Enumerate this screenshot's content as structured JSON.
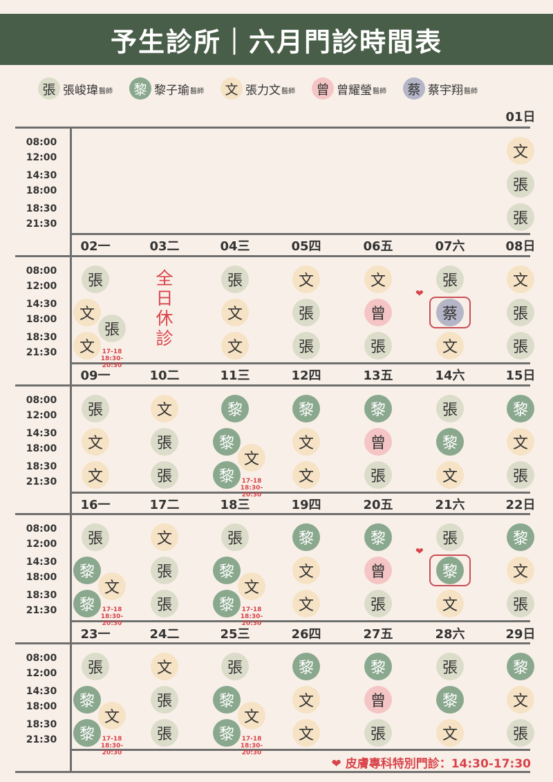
{
  "title": "予生診所｜六月門診時間表",
  "legend": [
    {
      "key": "zhang",
      "char": "張",
      "name": "張峻瑋",
      "suffix": "醫師"
    },
    {
      "key": "li",
      "char": "黎",
      "name": "黎子瑜",
      "suffix": "醫師"
    },
    {
      "key": "wen",
      "char": "文",
      "name": "張力文",
      "suffix": "醫師"
    },
    {
      "key": "zeng",
      "char": "曾",
      "name": "曾耀瑩",
      "suffix": "醫師"
    },
    {
      "key": "cai",
      "char": "蔡",
      "name": "蔡宇翔",
      "suffix": "醫師"
    }
  ],
  "time_slots": [
    {
      "start": "08:00",
      "end": "12:00"
    },
    {
      "start": "14:30",
      "end": "18:00"
    },
    {
      "start": "18:30",
      "end": "21:30"
    }
  ],
  "closed_text": "全日休診",
  "split_note": {
    "line1": "17-18",
    "line2": "18:30-20:30"
  },
  "footer": {
    "heart": "❤",
    "text": "皮膚專科特別門診：14:30-17:30"
  },
  "weeks": [
    {
      "days": [
        {
          "label": "01日",
          "col": 6,
          "slots": [
            [
              "文"
            ],
            [
              "張"
            ],
            [
              "張"
            ]
          ]
        }
      ]
    },
    {
      "days": [
        {
          "label": "02一",
          "col": 0,
          "slots": [
            [
              "張"
            ],
            [
              "文",
              "張"
            ],
            [
              "文"
            ]
          ],
          "split": true
        },
        {
          "label": "03二",
          "col": 1,
          "closed": true,
          "slots": []
        },
        {
          "label": "04三",
          "col": 2,
          "slots": [
            [
              "張"
            ],
            [
              "文"
            ],
            [
              "文"
            ]
          ]
        },
        {
          "label": "05四",
          "col": 3,
          "slots": [
            [
              "文"
            ],
            [
              "張"
            ],
            [
              "張"
            ]
          ]
        },
        {
          "label": "06五",
          "col": 4,
          "slots": [
            [
              "文"
            ],
            [
              "曾"
            ],
            [
              "張"
            ]
          ]
        },
        {
          "label": "07六",
          "col": 5,
          "slots": [
            [
              "張"
            ],
            [
              "蔡"
            ],
            [
              "文"
            ]
          ],
          "special": true
        },
        {
          "label": "08日",
          "col": 6,
          "slots": [
            [
              "文"
            ],
            [
              "張"
            ],
            [
              "張"
            ]
          ]
        }
      ]
    },
    {
      "days": [
        {
          "label": "09一",
          "col": 0,
          "slots": [
            [
              "張"
            ],
            [
              "文"
            ],
            [
              "文"
            ]
          ]
        },
        {
          "label": "10二",
          "col": 1,
          "slots": [
            [
              "文"
            ],
            [
              "張"
            ],
            [
              "張"
            ]
          ]
        },
        {
          "label": "11三",
          "col": 2,
          "slots": [
            [
              "黎"
            ],
            [
              "黎",
              "文"
            ],
            [
              "黎"
            ]
          ],
          "split": true
        },
        {
          "label": "12四",
          "col": 3,
          "slots": [
            [
              "黎"
            ],
            [
              "文"
            ],
            [
              "文"
            ]
          ]
        },
        {
          "label": "13五",
          "col": 4,
          "slots": [
            [
              "黎"
            ],
            [
              "曾"
            ],
            [
              "張"
            ]
          ]
        },
        {
          "label": "14六",
          "col": 5,
          "slots": [
            [
              "張"
            ],
            [
              "黎"
            ],
            [
              "文"
            ]
          ]
        },
        {
          "label": "15日",
          "col": 6,
          "slots": [
            [
              "黎"
            ],
            [
              "文"
            ],
            [
              "張"
            ]
          ]
        }
      ]
    },
    {
      "days": [
        {
          "label": "16一",
          "col": 0,
          "slots": [
            [
              "張"
            ],
            [
              "黎",
              "文"
            ],
            [
              "黎"
            ]
          ],
          "split": true
        },
        {
          "label": "17二",
          "col": 1,
          "slots": [
            [
              "文"
            ],
            [
              "張"
            ],
            [
              "張"
            ]
          ]
        },
        {
          "label": "18三",
          "col": 2,
          "slots": [
            [
              "張"
            ],
            [
              "黎",
              "文"
            ],
            [
              "黎"
            ]
          ],
          "split": true
        },
        {
          "label": "19四",
          "col": 3,
          "slots": [
            [
              "黎"
            ],
            [
              "文"
            ],
            [
              "文"
            ]
          ]
        },
        {
          "label": "20五",
          "col": 4,
          "slots": [
            [
              "黎"
            ],
            [
              "曾"
            ],
            [
              "張"
            ]
          ]
        },
        {
          "label": "21六",
          "col": 5,
          "slots": [
            [
              "張"
            ],
            [
              "黎"
            ],
            [
              "文"
            ]
          ],
          "special": true
        },
        {
          "label": "22日",
          "col": 6,
          "slots": [
            [
              "黎"
            ],
            [
              "文"
            ],
            [
              "張"
            ]
          ]
        }
      ]
    },
    {
      "days": [
        {
          "label": "23一",
          "col": 0,
          "slots": [
            [
              "張"
            ],
            [
              "黎",
              "文"
            ],
            [
              "黎"
            ]
          ],
          "split": true
        },
        {
          "label": "24二",
          "col": 1,
          "slots": [
            [
              "文"
            ],
            [
              "張"
            ],
            [
              "張"
            ]
          ]
        },
        {
          "label": "25三",
          "col": 2,
          "slots": [
            [
              "張"
            ],
            [
              "黎",
              "文"
            ],
            [
              "黎"
            ]
          ],
          "split": true
        },
        {
          "label": "26四",
          "col": 3,
          "slots": [
            [
              "黎"
            ],
            [
              "文"
            ],
            [
              "文"
            ]
          ]
        },
        {
          "label": "27五",
          "col": 4,
          "slots": [
            [
              "黎"
            ],
            [
              "曾"
            ],
            [
              "張"
            ]
          ]
        },
        {
          "label": "28六",
          "col": 5,
          "slots": [
            [
              "張"
            ],
            [
              "黎"
            ],
            [
              "文"
            ]
          ]
        },
        {
          "label": "29日",
          "col": 6,
          "slots": [
            [
              "黎"
            ],
            [
              "文"
            ],
            [
              "張"
            ]
          ]
        }
      ]
    }
  ]
}
